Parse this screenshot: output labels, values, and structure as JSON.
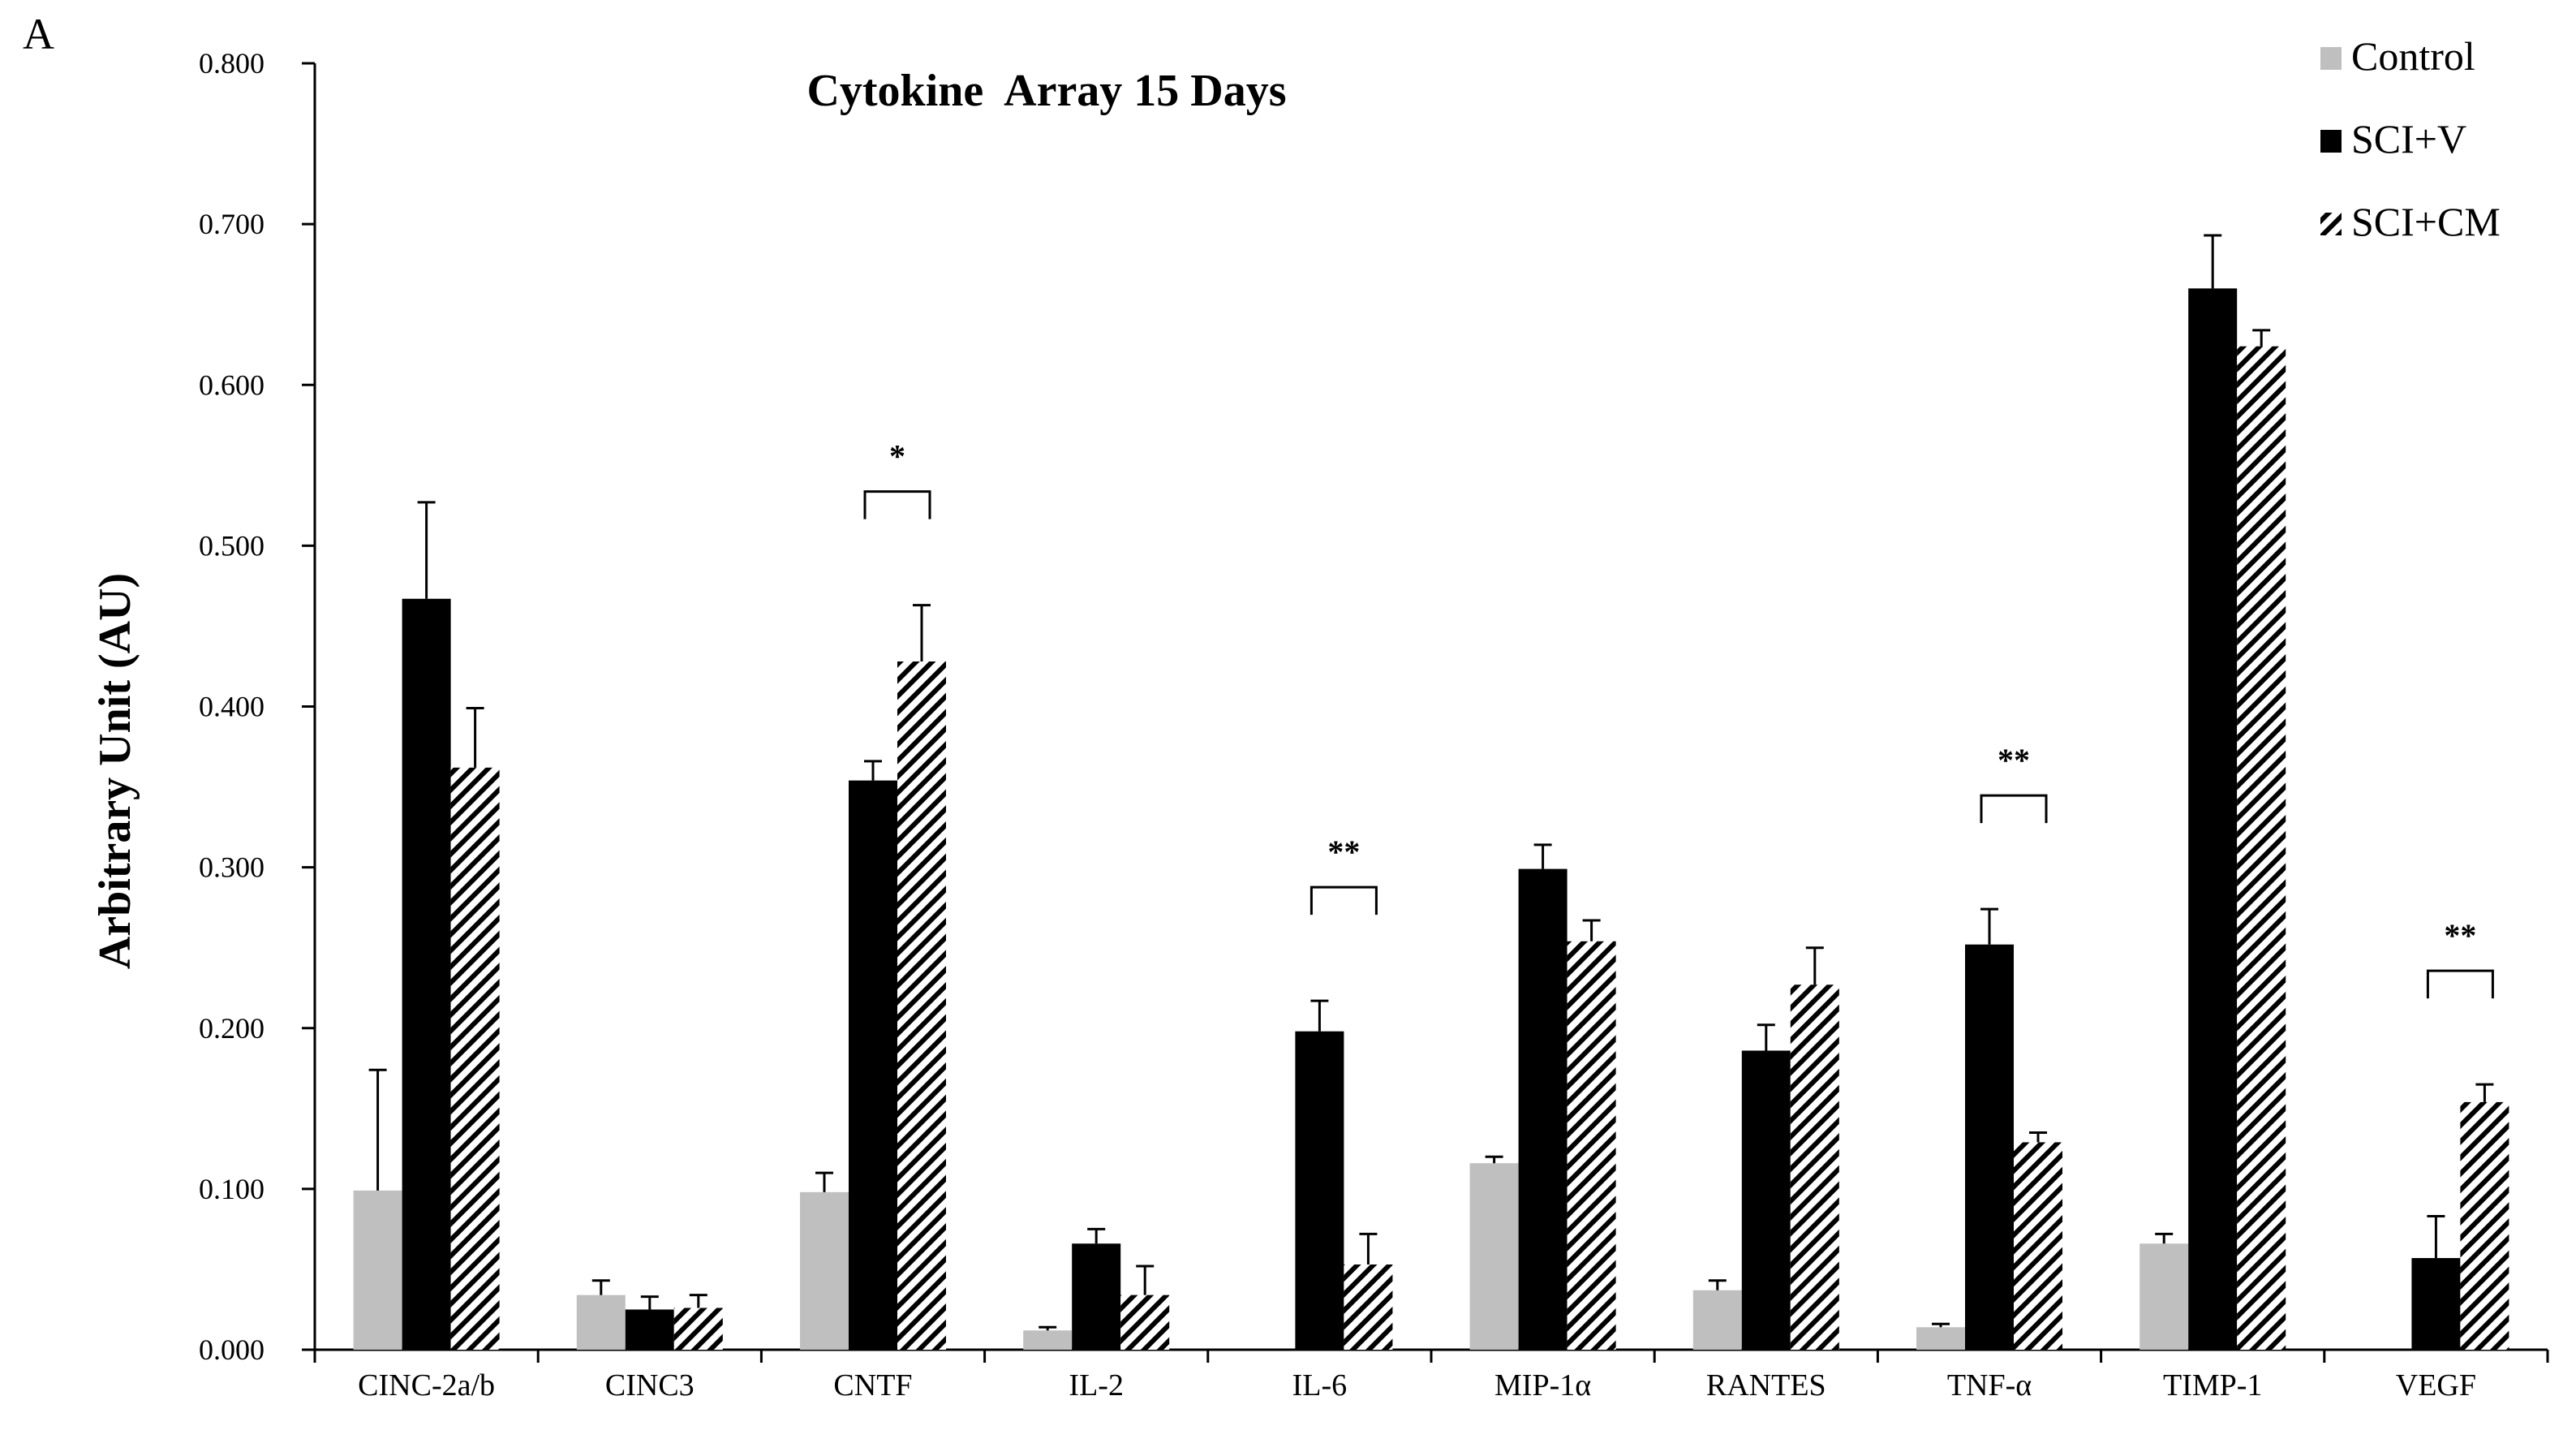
{
  "panel_label": "A",
  "chart_data": {
    "type": "bar",
    "title": "Cytokine  Array 15 Days",
    "xlabel": "",
    "ylabel": "Arbitrary Unit (AU)",
    "ylim": [
      0,
      0.8
    ],
    "yticks": [
      "0.000",
      "0.100",
      "0.200",
      "0.300",
      "0.400",
      "0.500",
      "0.600",
      "0.700",
      "0.800"
    ],
    "categories": [
      "CINC-2a/b",
      "CINC3",
      "CNTF",
      "IL-2",
      "IL-6",
      "MIP-1α",
      "RANTES",
      "TNF-α",
      "TIMP-1",
      "VEGF"
    ],
    "series": [
      {
        "name": "Control",
        "color": "#bfbfbf",
        "pattern": "solid",
        "values": [
          0.099,
          0.034,
          0.098,
          0.012,
          0,
          0.116,
          0.037,
          0.014,
          0.066,
          0
        ],
        "errors": [
          0.075,
          0.009,
          0.012,
          0.002,
          0,
          0.004,
          0.006,
          0.002,
          0.006,
          0
        ]
      },
      {
        "name": "SCI+V",
        "color": "#000000",
        "pattern": "solid",
        "values": [
          0.467,
          0.025,
          0.354,
          0.066,
          0.198,
          0.299,
          0.186,
          0.252,
          0.66,
          0.057
        ],
        "errors": [
          0.06,
          0.008,
          0.012,
          0.009,
          0.019,
          0.015,
          0.016,
          0.022,
          0.033,
          0.026
        ]
      },
      {
        "name": "SCI+CM",
        "color": "#000000",
        "pattern": "hatch",
        "values": [
          0.362,
          0.026,
          0.428,
          0.034,
          0.053,
          0.254,
          0.227,
          0.129,
          0.624,
          0.154
        ],
        "errors": [
          0.037,
          0.008,
          0.035,
          0.018,
          0.019,
          0.013,
          0.023,
          0.006,
          0.01,
          0.011
        ]
      }
    ],
    "significance": [
      {
        "category": "CNTF",
        "label": "*"
      },
      {
        "category": "IL-6",
        "label": "**"
      },
      {
        "category": "TNF-α",
        "label": "**"
      },
      {
        "category": "VEGF",
        "label": "**"
      }
    ],
    "legend_position": "top-right",
    "grid": false
  }
}
